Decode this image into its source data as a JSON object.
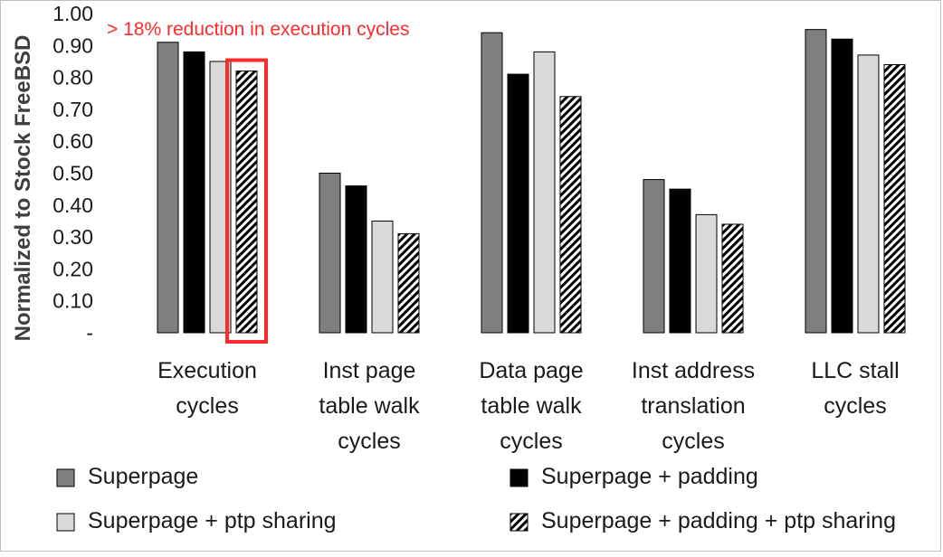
{
  "chart_data": {
    "type": "bar",
    "title": "",
    "xlabel": "",
    "ylabel": "Normalized to Stock FreeBSD",
    "ylim": [
      0,
      1.0
    ],
    "yticks": [
      "-",
      "0.10",
      "0.20",
      "0.30",
      "0.40",
      "0.50",
      "0.60",
      "0.70",
      "0.80",
      "0.90",
      "1.00"
    ],
    "categories": [
      [
        "Execution",
        "cycles"
      ],
      [
        "Inst page",
        "table walk",
        "cycles"
      ],
      [
        "Data page",
        "table walk",
        "cycles"
      ],
      [
        "Inst address",
        "translation",
        "cycles"
      ],
      [
        "LLC stall",
        "cycles"
      ]
    ],
    "series": [
      {
        "name": "Superpage",
        "color": "#7f7f7f",
        "pattern": "solid",
        "values": [
          0.91,
          0.5,
          0.94,
          0.48,
          0.95
        ]
      },
      {
        "name": "Superpage + padding",
        "color": "#000000",
        "pattern": "solid",
        "values": [
          0.88,
          0.46,
          0.81,
          0.45,
          0.92
        ]
      },
      {
        "name": "Superpage + ptp sharing",
        "color": "#d9d9d9",
        "pattern": "solid",
        "values": [
          0.85,
          0.35,
          0.88,
          0.37,
          0.87
        ]
      },
      {
        "name": "Superpage + padding + ptp sharing",
        "color": "#000000",
        "pattern": "hatch",
        "values": [
          0.82,
          0.31,
          0.74,
          0.34,
          0.84
        ]
      }
    ],
    "grid": false,
    "legend_position": "bottom",
    "annotation": {
      "text": "> 18% reduction in execution cycles",
      "color": "#ff2a2a",
      "highlight_category": 0,
      "highlight_series": 3
    }
  }
}
